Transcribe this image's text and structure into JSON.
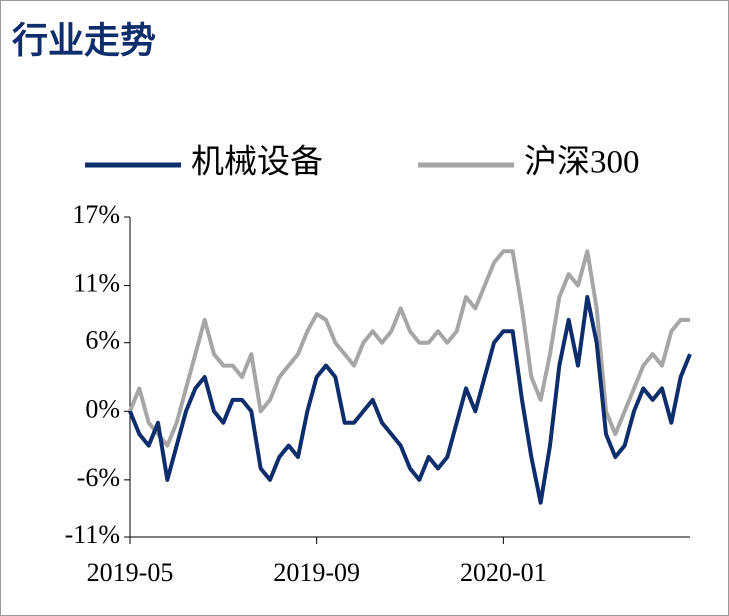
{
  "chart_data": {
    "type": "line",
    "title": "行业走势",
    "categories": [
      "2019-05",
      null,
      null,
      null,
      null,
      null,
      null,
      null,
      null,
      null,
      null,
      null,
      null,
      null,
      null,
      null,
      null,
      null,
      null,
      null,
      "2019-09",
      null,
      null,
      null,
      null,
      null,
      null,
      null,
      null,
      null,
      null,
      null,
      null,
      null,
      null,
      null,
      null,
      null,
      null,
      null,
      "2020-01",
      null,
      null,
      null,
      null,
      null,
      null,
      null,
      null,
      null,
      null,
      null,
      null,
      null,
      null,
      null,
      null,
      null,
      null,
      null,
      null
    ],
    "series": [
      {
        "name": "机械设备",
        "color": "#0d2d6c",
        "values": [
          0,
          -2,
          -3,
          -1,
          -6,
          -3,
          0,
          2,
          3,
          0,
          -1,
          1,
          1,
          0,
          -5,
          -6,
          -4,
          -3,
          -4,
          0,
          3,
          4,
          3,
          -1,
          -1,
          0,
          1,
          -1,
          -2,
          -3,
          -5,
          -6,
          -4,
          -5,
          -4,
          -1,
          2,
          0,
          3,
          6,
          7,
          7,
          1,
          -4,
          -8,
          -3,
          4,
          8,
          4,
          10,
          6,
          -2,
          -4,
          -3,
          0,
          2,
          1,
          2,
          -1,
          3,
          5
        ]
      },
      {
        "name": "沪深300",
        "color": "#a6a6a6",
        "values": [
          0,
          2,
          -1,
          -2,
          -3,
          -1,
          2,
          5,
          8,
          5,
          4,
          4,
          3,
          5,
          0,
          1,
          3,
          4,
          5,
          7,
          8.5,
          8,
          6,
          5,
          4,
          6,
          7,
          6,
          7,
          9,
          7,
          6,
          6,
          7,
          6,
          7,
          10,
          9,
          11,
          13,
          14,
          14,
          9,
          3,
          1,
          5,
          10,
          12,
          11,
          14,
          9,
          0,
          -2,
          0,
          2,
          4,
          5,
          4,
          7,
          8,
          8
        ]
      }
    ],
    "ylim": [
      -11,
      17
    ],
    "yticks": [
      {
        "value": -11,
        "label": "-11%"
      },
      {
        "value": -6,
        "label": "-6%"
      },
      {
        "value": 0,
        "label": "0%"
      },
      {
        "value": 6,
        "label": "6%"
      },
      {
        "value": 11,
        "label": "11%"
      },
      {
        "value": 17,
        "label": "17%"
      }
    ],
    "grid": false
  }
}
